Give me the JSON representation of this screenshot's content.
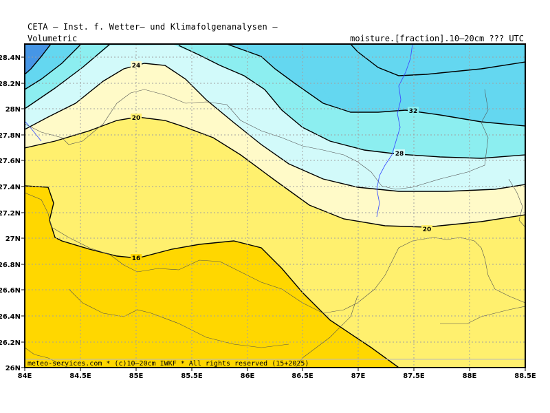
{
  "header": {
    "title": "CETA — Inst. f. Wetter— und Klimafolgenanalysen —",
    "left_label": "Volumetric",
    "right_label": "moisture.[fraction].10—20cm ??? UTC"
  },
  "map": {
    "x_ticks": [
      "84E",
      "84.5E",
      "85E",
      "85.5E",
      "86E",
      "86.5E",
      "87E",
      "87.5E",
      "88E",
      "88.5E"
    ],
    "y_ticks": [
      "28.4N",
      "28.2N",
      "28N",
      "27.8N",
      "27.6N",
      "27.4N",
      "27.2N",
      "27N",
      "26.8N",
      "26.6N",
      "26.4N",
      "26.2N",
      "26N"
    ],
    "contour_labels": [
      "24",
      "20",
      "32",
      "28",
      "20",
      "16"
    ],
    "credit": "meteo-services.com * (c)10—20cm IWKF * All rights reserved (15+2025)",
    "colors": {
      "level_below_16": "#ffd700",
      "level_16_20": "#fff06e",
      "level_20_24": "#fffac8",
      "level_24_28": "#d2fafa",
      "level_28_32": "#8ceef0",
      "level_32_36": "#64d7f0",
      "level_above_36": "#4696e6",
      "rivers": "#3c50ff",
      "borders": "#505050"
    }
  }
}
